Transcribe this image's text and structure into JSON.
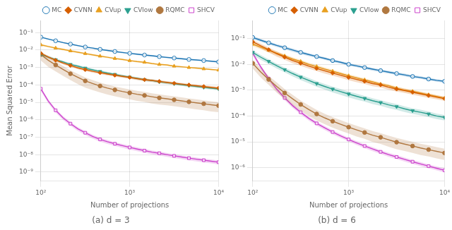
{
  "chart_data": [
    {
      "type": "line",
      "title": "(a) d = 3",
      "xlabel": "Number of projections",
      "ylabel": "Mean Squared Error",
      "log": true,
      "grid": true,
      "legend": "upper right",
      "x": [
        100,
        121.15276586285884,
        146.77992676220694,
        177.82794100389228,
        215.44346900318845,
        261.01572156825364,
        316.22776601683796,
        383.1186849557289,
        464.15888336127773,
        562.341325190349,
        681.292069057961,
        825.4041852680186,
        1000,
        1211.5276586285884,
        1467.7992676220692,
        1778.2794100389228,
        2154.4346900318847,
        2610.1572156825364,
        3162.2776601683795,
        3831.186849557287,
        4641.588833612777,
        5623.413251903491,
        6812.920690579611,
        8254.041852680182,
        10000
      ],
      "xlim": [
        100,
        10000
      ],
      "xticks": [
        {
          "value": 100,
          "label": "10²"
        },
        {
          "value": 1000,
          "label": "10³"
        },
        {
          "value": 10000,
          "label": "10⁴"
        }
      ],
      "ylim": [
        3e-10,
        0.5
      ],
      "yticks": [
        {
          "value": 1e-09,
          "label": "10⁻⁹"
        },
        {
          "value": 1e-08,
          "label": "10⁻⁸"
        },
        {
          "value": 1e-07,
          "label": "10⁻⁷"
        },
        {
          "value": 1e-06,
          "label": "10⁻⁶"
        },
        {
          "value": 1e-05,
          "label": "10⁻⁵"
        },
        {
          "value": 0.0001,
          "label": "10⁻⁴"
        },
        {
          "value": 0.001,
          "label": "10⁻³"
        },
        {
          "value": 0.01,
          "label": "10⁻²"
        },
        {
          "value": 0.1,
          "label": "10⁻¹"
        }
      ],
      "series": [
        {
          "name": "MC",
          "color": "#1f77b4",
          "marker": "circle_open",
          "values": [
            0.055,
            0.043,
            0.034,
            0.027,
            0.022,
            0.018,
            0.015,
            0.013,
            0.011,
            0.0095,
            0.0083,
            0.0073,
            0.0065,
            0.0058,
            0.0052,
            0.0047,
            0.0042,
            0.0038,
            0.0035,
            0.0032,
            0.0029,
            0.0027,
            0.0025,
            0.0023,
            0.0021
          ],
          "std": [
            0.005,
            0.004,
            0.003,
            0.0025,
            0.002,
            0.0017,
            0.0014,
            0.0012,
            0.001,
            0.0009,
            0.0008,
            0.0007,
            0.0006,
            0.00055,
            0.0005,
            0.00045,
            0.0004,
            0.00037,
            0.00034,
            0.00031,
            0.00028,
            0.00026,
            0.00024,
            0.00022,
            0.0002
          ]
        },
        {
          "name": "CVNN",
          "color": "#d65f00",
          "marker": "diamond",
          "values": [
            0.0065,
            0.004,
            0.0026,
            0.0018,
            0.0013,
            0.00095,
            0.00075,
            0.0006,
            0.0005,
            0.00042,
            0.00036,
            0.00031,
            0.00027,
            0.00023,
            0.0002,
            0.00018,
            0.00016,
            0.00014,
            0.000125,
            0.000112,
            0.0001,
            9e-05,
            8.1e-05,
            7.3e-05,
            6.6e-05
          ],
          "std": [
            0.001,
            0.0007,
            0.0005,
            0.0003,
            0.00022,
            0.00016,
            0.00013,
            0.0001,
            8.5e-05,
            7.2e-05,
            6.2e-05,
            5.3e-05,
            4.6e-05,
            4e-05,
            3.5e-05,
            3.1e-05,
            2.8e-05,
            2.5e-05,
            2.2e-05,
            1.97e-05,
            1.76e-05,
            1.58e-05,
            1.42e-05,
            1.28e-05,
            1.16e-05
          ]
        },
        {
          "name": "CVup",
          "color": "#e8a020",
          "marker": "triangle_up",
          "values": [
            0.02,
            0.016,
            0.013,
            0.011,
            0.009,
            0.0075,
            0.0063,
            0.0053,
            0.0045,
            0.0039,
            0.0033,
            0.0029,
            0.0025,
            0.0022,
            0.002,
            0.0017,
            0.0015,
            0.0014,
            0.0012,
            0.0011,
            0.001,
            0.00092,
            0.00084,
            0.00077,
            0.00071
          ],
          "std": [
            0.003,
            0.002,
            0.0017,
            0.0014,
            0.0011,
            0.0009,
            0.00075,
            0.00063,
            0.00053,
            0.00045,
            0.00038,
            0.00033,
            0.00028,
            0.00024,
            0.00021,
            0.00018,
            0.00016,
            0.00014,
            0.000125,
            0.000111,
            9.9e-05,
            8.8e-05,
            7.9e-05,
            7e-05,
            6.3e-05
          ]
        },
        {
          "name": "CVlow",
          "color": "#2ca090",
          "marker": "triangle_down",
          "values": [
            0.0058,
            0.004,
            0.0028,
            0.0021,
            0.0015,
            0.0012,
            0.00092,
            0.00073,
            0.00059,
            0.00048,
            0.0004,
            0.00033,
            0.00028,
            0.00024,
            0.0002,
            0.00018,
            0.00015,
            0.000135,
            0.000118,
            0.000104,
            9.2e-05,
            8.2e-05,
            7.3e-05,
            6.5e-05,
            5.9e-05
          ],
          "std": [
            0.001,
            0.0007,
            0.0005,
            0.00036,
            0.00027,
            0.0002,
            0.000158,
            0.000126,
            0.000102,
            8.3e-05,
            6.9e-05,
            5.7e-05,
            4.8e-05,
            4.1e-05,
            3.4e-05,
            3e-05,
            2.6e-05,
            2.3e-05,
            2e-05,
            1.7e-05,
            1.5e-05,
            1.4e-05,
            1.2e-05,
            1.1e-05,
            9.8e-06
          ]
        },
        {
          "name": "RQMC",
          "color": "#b07840",
          "marker": "circle",
          "values": [
            0.0055,
            0.0026,
            0.0014,
            0.00078,
            0.00044,
            0.00027,
            0.00017,
            0.00012,
            8.7e-05,
            6.6e-05,
            5.2e-05,
            4.2e-05,
            3.5e-05,
            2.9e-05,
            2.5e-05,
            2.1e-05,
            1.8e-05,
            1.6e-05,
            1.4e-05,
            1.22e-05,
            1.07e-05,
            9.4e-06,
            8.3e-06,
            7.3e-06,
            6.5e-06
          ],
          "std": [
            0.003,
            0.0015,
            0.0008,
            0.00045,
            0.00025,
            0.00016,
            0.0001,
            7e-05,
            5e-05,
            3.8e-05,
            3e-05,
            2.4e-05,
            2e-05,
            1.7e-05,
            1.45e-05,
            1.24e-05,
            1.06e-05,
            9.2e-06,
            8e-06,
            7e-06,
            6.1e-06,
            5.4e-06,
            4.8e-06,
            4.3e-06,
            3.8e-06
          ]
        },
        {
          "name": "SHCV",
          "color": "#cc44cc",
          "marker": "square_open",
          "values": [
            6e-05,
            1.2e-05,
            3.5e-06,
            1.3e-06,
            6e-07,
            3e-07,
            1.8e-07,
            1.1e-07,
            7.5e-08,
            5.5e-08,
            4.2e-08,
            3.3e-08,
            2.6e-08,
            2.1e-08,
            1.7e-08,
            1.4e-08,
            1.2e-08,
            1e-08,
            8.5e-09,
            7.3e-09,
            6.3e-09,
            5.5e-09,
            4.8e-09,
            4.2e-09,
            3.7e-09
          ],
          "std": [
            1.5e-05,
            3e-06,
            9e-07,
            3.3e-07,
            1.5e-07,
            7.5e-08,
            4.5e-08,
            2.8e-08,
            1.9e-08,
            1.4e-08,
            1.05e-08,
            8.3e-09,
            6.5e-09,
            5.3e-09,
            4.3e-09,
            3.5e-09,
            3e-09,
            2.5e-09,
            2.1e-09,
            1.8e-09,
            1.6e-09,
            1.4e-09,
            1.2e-09,
            1.05e-09,
            9.3e-10
          ]
        }
      ]
    },
    {
      "type": "line",
      "title": "(b) d = 6",
      "xlabel": "Number of projections",
      "log": true,
      "grid": true,
      "legend": "upper right",
      "x": [
        100,
        121.15276586285884,
        146.77992676220694,
        177.82794100389228,
        215.44346900318845,
        261.01572156825364,
        316.22776601683796,
        383.1186849557289,
        464.15888336127773,
        562.341325190349,
        681.292069057961,
        825.4041852680186,
        1000,
        1211.5276586285884,
        1467.7992676220692,
        1778.2794100389228,
        2154.4346900318847,
        2610.1572156825364,
        3162.2776601683795,
        3831.186849557287,
        4641.588833612777,
        5623.413251903491,
        6812.920690579611,
        8254.041852680182,
        10000
      ],
      "xlim": [
        100,
        10000
      ],
      "xticks": [
        {
          "value": 100,
          "label": "10²"
        },
        {
          "value": 1000,
          "label": "10³"
        },
        {
          "value": 10000,
          "label": "10⁴"
        }
      ],
      "ylim": [
        3e-07,
        0.5
      ],
      "yticks": [
        {
          "value": 1e-06,
          "label": "10⁻⁶"
        },
        {
          "value": 1e-05,
          "label": "10⁻⁵"
        },
        {
          "value": 0.0001,
          "label": "10⁻⁴"
        },
        {
          "value": 0.001,
          "label": "10⁻³"
        },
        {
          "value": 0.01,
          "label": "10⁻²"
        },
        {
          "value": 0.1,
          "label": "10⁻¹"
        }
      ],
      "series": [
        {
          "name": "MC",
          "color": "#1f77b4",
          "marker": "circle_open",
          "values": [
            0.11,
            0.086,
            0.068,
            0.054,
            0.044,
            0.036,
            0.029,
            0.024,
            0.02,
            0.017,
            0.014,
            0.012,
            0.01,
            0.0087,
            0.0075,
            0.0065,
            0.0057,
            0.005,
            0.0044,
            0.0039,
            0.0034,
            0.0031,
            0.0027,
            0.0024,
            0.0022
          ],
          "std": [
            0.015,
            0.011,
            0.009,
            0.007,
            0.006,
            0.005,
            0.004,
            0.003,
            0.0025,
            0.002,
            0.0017,
            0.0014,
            0.0012,
            0.001,
            0.0009,
            0.0008,
            0.0007,
            0.00062,
            0.00054,
            0.00047,
            0.00041,
            0.00036,
            0.00032,
            0.00028,
            0.00025
          ]
        },
        {
          "name": "CVNN",
          "color": "#d65f00",
          "marker": "diamond",
          "values": [
            0.075,
            0.052,
            0.037,
            0.026,
            0.019,
            0.014,
            0.011,
            0.0086,
            0.0069,
            0.0056,
            0.0046,
            0.0038,
            0.0031,
            0.0026,
            0.0022,
            0.0018,
            0.0016,
            0.0013,
            0.0011,
            0.00097,
            0.00083,
            0.00072,
            0.00062,
            0.00054,
            0.00047
          ],
          "std": [
            0.015,
            0.011,
            0.008,
            0.006,
            0.004,
            0.003,
            0.0022,
            0.0018,
            0.0014,
            0.0012,
            0.00097,
            0.0008,
            0.00066,
            0.00055,
            0.00046,
            0.00038,
            0.00032,
            0.00027,
            0.00022,
            0.00019,
            0.00016,
            0.00014,
            0.00012,
            0.0001,
            8.8e-05
          ]
        },
        {
          "name": "CVup",
          "color": "#e8a020",
          "marker": "triangle_up",
          "values": [
            0.06,
            0.046,
            0.035,
            0.027,
            0.021,
            0.016,
            0.013,
            0.01,
            0.0082,
            0.0066,
            0.0054,
            0.0044,
            0.0036,
            0.003,
            0.0025,
            0.0021,
            0.0017,
            0.0015,
            0.0012,
            0.001,
            0.0009,
            0.00077,
            0.00066,
            0.00057,
            0.00049
          ],
          "std": [
            0.01,
            0.0075,
            0.006,
            0.0045,
            0.0034,
            0.0026,
            0.002,
            0.0016,
            0.0013,
            0.001,
            0.00083,
            0.00068,
            0.00056,
            0.00046,
            0.00038,
            0.00032,
            0.00026,
            0.00022,
            0.00018,
            0.00015,
            0.00013,
            0.00011,
            9.2e-05,
            7.9e-05,
            6.8e-05
          ]
        },
        {
          "name": "CVlow",
          "color": "#2ca090",
          "marker": "triangle_down",
          "values": [
            0.029,
            0.019,
            0.013,
            0.0088,
            0.0062,
            0.0044,
            0.0032,
            0.0024,
            0.0018,
            0.0014,
            0.0011,
            0.00088,
            0.00071,
            0.00058,
            0.00048,
            0.00039,
            0.00033,
            0.00027,
            0.00023,
            0.00019,
            0.00016,
            0.00014,
            0.00012,
            0.0001,
            8.8e-05
          ],
          "std": [
            0.006,
            0.004,
            0.0027,
            0.0019,
            0.0013,
            0.001,
            0.00073,
            0.00056,
            0.00044,
            0.00035,
            0.00028,
            0.00022,
            0.00018,
            0.00015,
            0.00012,
            0.0001,
            8.3e-05,
            6.9e-05,
            5.8e-05,
            4.8e-05,
            4e-05,
            3.4e-05,
            2.9e-05,
            2.4e-05,
            2.1e-05
          ]
        },
        {
          "name": "RQMC",
          "color": "#b07840",
          "marker": "circle",
          "values": [
            0.011,
            0.0051,
            0.0026,
            0.0014,
            0.00078,
            0.00046,
            0.00028,
            0.00018,
            0.00012,
            8.5e-05,
            6.3e-05,
            4.8e-05,
            3.7e-05,
            2.9e-05,
            2.3e-05,
            1.8e-05,
            1.5e-05,
            1.2e-05,
            9.7e-06,
            8.2e-06,
            6.9e-06,
            5.8e-06,
            5e-06,
            4.3e-06,
            3.7e-06
          ],
          "std": [
            0.004,
            0.002,
            0.001,
            0.0006,
            0.00033,
            0.0002,
            0.00012,
            7.9e-05,
            5.3e-05,
            3.7e-05,
            2.8e-05,
            2.1e-05,
            1.6e-05,
            1.3e-05,
            1e-05,
            8.2e-06,
            6.7e-06,
            5.5e-06,
            4.5e-06,
            3.8e-06,
            3.2e-06,
            2.7e-06,
            2.3e-06,
            2e-06,
            1.7e-06
          ]
        },
        {
          "name": "SHCV",
          "color": "#cc44cc",
          "marker": "square_open",
          "values": [
            0.027,
            0.008,
            0.0028,
            0.0011,
            0.0005,
            0.00025,
            0.00014,
            8.2e-05,
            5.2e-05,
            3.5e-05,
            2.4e-05,
            1.7e-05,
            1.24e-05,
            9.1e-06,
            6.9e-06,
            5.3e-06,
            4.1e-06,
            3.2e-06,
            2.6e-06,
            2.1e-06,
            1.7e-06,
            1.4e-06,
            1.15e-06,
            9.5e-07,
            7.9e-07
          ],
          "std": [
            0.005,
            0.0014,
            0.00049,
            0.0002,
            8.8e-05,
            4.4e-05,
            2.4e-05,
            1.43e-05,
            9.1e-06,
            6.1e-06,
            4.2e-06,
            2.9e-06,
            2.1e-06,
            1.6e-06,
            1.2e-06,
            9.3e-07,
            7.2e-07,
            5.7e-07,
            4.6e-07,
            3.7e-07,
            3e-07,
            2.5e-07,
            2e-07,
            1.7e-07,
            1.4e-07
          ]
        }
      ]
    }
  ]
}
